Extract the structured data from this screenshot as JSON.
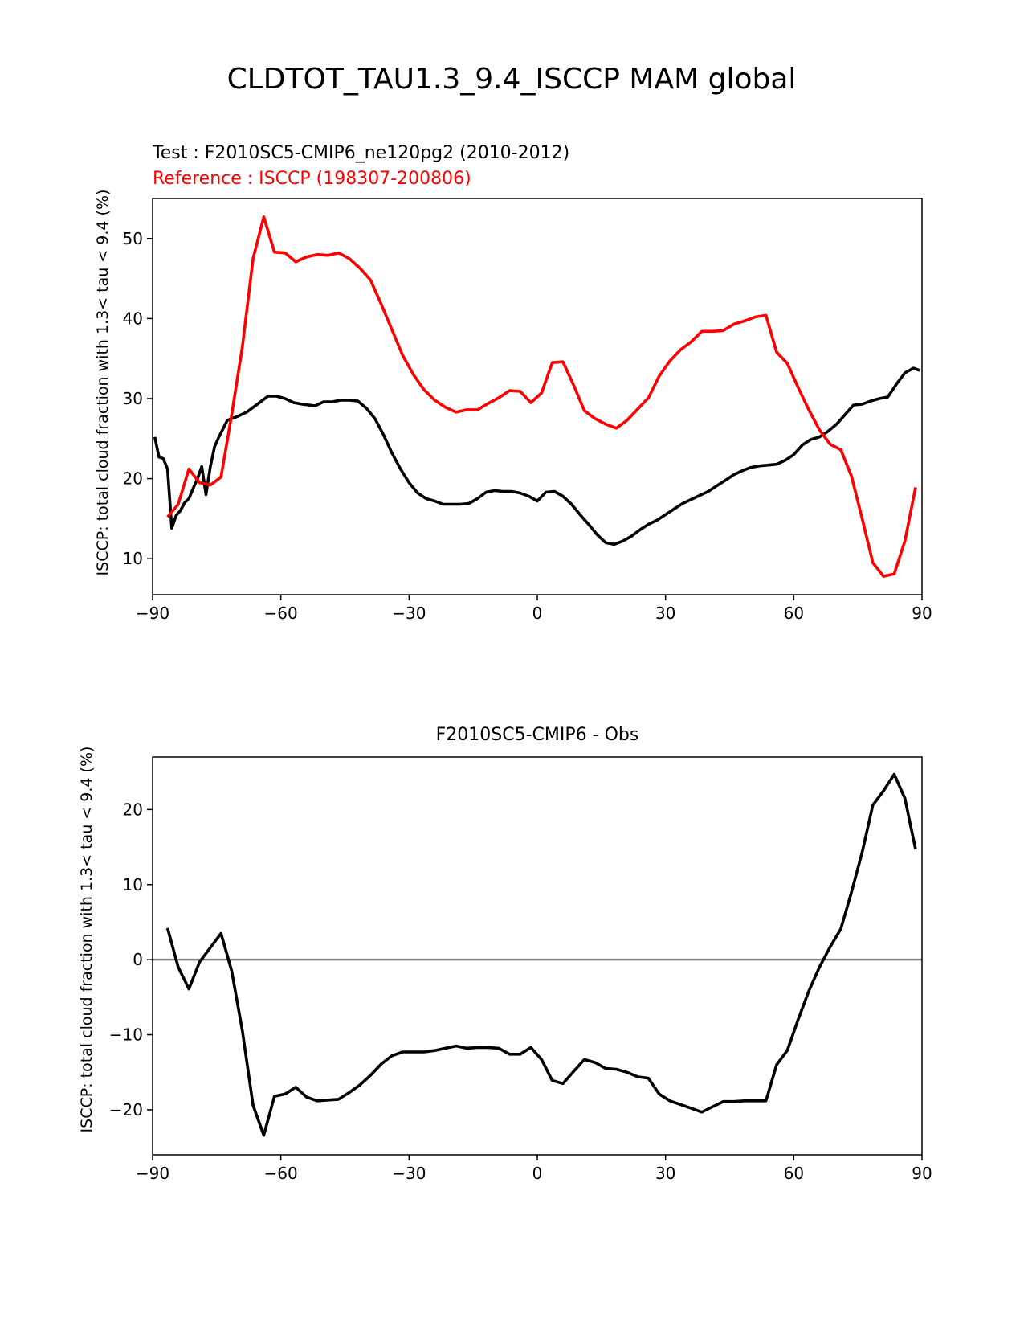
{
  "figure_title": "CLDTOT_TAU1.3_9.4_ISCCP MAM global",
  "colors": {
    "test": "#000000",
    "reference": "#ff0000",
    "zero_line": "#808080"
  },
  "chart_data": [
    {
      "type": "line",
      "test_label": "Test : F2010SC5-CMIP6_ne120pg2 (2010-2012)",
      "reference_label": "Reference : ISCCP (198307-200806)",
      "ylabel": "ISCCP: total cloud fraction with 1.3< tau < 9.4 (%)",
      "xlabel": "",
      "xlim": [
        -90,
        90
      ],
      "ylim": [
        5.5,
        55
      ],
      "xticks": [
        -90,
        -60,
        -30,
        0,
        30,
        60,
        90
      ],
      "xtick_labels": [
        "−90",
        "−60",
        "−30",
        "0",
        "30",
        "60",
        "90"
      ],
      "yticks": [
        10,
        20,
        30,
        40,
        50
      ],
      "ytick_labels": [
        "10",
        "20",
        "30",
        "40",
        "50"
      ],
      "series": [
        {
          "name": "Test",
          "color": "#000000",
          "x": [
            -89.5,
            -88.5,
            -87.5,
            -86.5,
            -85.5,
            -84.5,
            -83.5,
            -82.5,
            -81.5,
            -80.5,
            -79.5,
            -78.5,
            -77.5,
            -76.5,
            -75.5,
            -74.5,
            -72.5,
            -70,
            -68,
            -65,
            -63,
            -61,
            -59,
            -57,
            -55,
            -52,
            -50,
            -48,
            -46,
            -44,
            -42,
            -40,
            -38,
            -36,
            -34,
            -32,
            -30,
            -28,
            -26,
            -24,
            -22,
            -20,
            -18,
            -16,
            -14,
            -12,
            -10,
            -8,
            -6,
            -4,
            -2,
            0,
            2,
            4,
            6,
            8,
            10,
            12,
            14,
            16,
            18,
            20,
            22,
            24,
            26,
            28,
            30,
            32,
            34,
            36,
            38,
            40,
            42,
            44,
            46,
            48,
            50,
            52,
            54,
            56,
            58,
            60,
            62,
            64,
            66,
            68,
            70,
            72,
            74,
            76,
            78,
            80,
            82,
            84,
            86,
            88,
            89.5
          ],
          "values": [
            25.2,
            22.7,
            22.5,
            21.2,
            13.8,
            15.4,
            16.0,
            17.0,
            17.5,
            18.8,
            20.0,
            21.5,
            18.0,
            21.5,
            24.0,
            25.2,
            27.3,
            27.8,
            28.3,
            29.5,
            30.3,
            30.3,
            30.0,
            29.5,
            29.3,
            29.1,
            29.6,
            29.6,
            29.8,
            29.8,
            29.7,
            28.8,
            27.5,
            25.5,
            23.2,
            21.2,
            19.5,
            18.2,
            17.5,
            17.2,
            16.8,
            16.8,
            16.8,
            16.9,
            17.5,
            18.3,
            18.5,
            18.4,
            18.4,
            18.2,
            17.8,
            17.2,
            18.3,
            18.4,
            17.8,
            16.8,
            15.5,
            14.3,
            13.0,
            12.0,
            11.8,
            12.2,
            12.8,
            13.6,
            14.3,
            14.8,
            15.5,
            16.2,
            16.9,
            17.4,
            17.9,
            18.4,
            19.1,
            19.8,
            20.5,
            21.0,
            21.4,
            21.6,
            21.7,
            21.8,
            22.3,
            23.0,
            24.2,
            24.9,
            25.2,
            25.9,
            26.8,
            28.0,
            29.2,
            29.3,
            29.7,
            30.0,
            30.2,
            31.8,
            33.2,
            33.8,
            33.5
          ],
          "style": "solid"
        },
        {
          "name": "Reference",
          "color": "#ff0000",
          "x": [
            -86.5,
            -84,
            -81.5,
            -79,
            -76.5,
            -74,
            -71.5,
            -69,
            -66.5,
            -64,
            -61.5,
            -59,
            -56.5,
            -54,
            -51.5,
            -49,
            -46.5,
            -44,
            -41.5,
            -39,
            -36.5,
            -34,
            -31.5,
            -29,
            -26.5,
            -24,
            -21.5,
            -19,
            -16.5,
            -14,
            -11.5,
            -9,
            -6.5,
            -4,
            -1.5,
            1,
            3.5,
            6,
            8.5,
            11,
            13.5,
            16,
            18.5,
            21,
            23.5,
            26,
            28.5,
            31,
            33.5,
            36,
            38.5,
            41,
            43.5,
            46,
            48.5,
            51,
            53.5,
            56,
            58.5,
            61,
            63.5,
            66,
            68.5,
            71,
            73.5,
            76,
            78.5,
            81,
            83.5,
            86,
            88.5
          ],
          "values": [
            15.2,
            16.8,
            21.2,
            19.5,
            19.2,
            20.2,
            28.0,
            36.5,
            47.5,
            52.7,
            48.3,
            48.2,
            47.1,
            47.7,
            48.0,
            47.9,
            48.2,
            47.5,
            46.3,
            44.8,
            41.8,
            38.6,
            35.4,
            33.0,
            31.1,
            29.8,
            28.9,
            28.3,
            28.6,
            28.6,
            29.4,
            30.1,
            31.0,
            30.9,
            29.5,
            30.7,
            34.5,
            34.6,
            31.7,
            28.5,
            27.5,
            26.8,
            26.3,
            27.3,
            28.7,
            30.1,
            32.8,
            34.7,
            36.1,
            37.1,
            38.4,
            38.4,
            38.5,
            39.3,
            39.7,
            40.2,
            40.4,
            35.8,
            34.4,
            31.4,
            28.6,
            26.1,
            24.3,
            23.6,
            20.3,
            15.0,
            9.5,
            7.8,
            8.1,
            12.2,
            18.9
          ],
          "style": "solid"
        }
      ]
    },
    {
      "type": "line",
      "title": "F2010SC5-CMIP6 - Obs",
      "ylabel": "ISCCP: total cloud fraction with 1.3< tau < 9.4 (%)",
      "xlabel": "",
      "xlim": [
        -90,
        90
      ],
      "ylim": [
        -26,
        27
      ],
      "xticks": [
        -90,
        -60,
        -30,
        0,
        30,
        60,
        90
      ],
      "xtick_labels": [
        "−90",
        "−60",
        "−30",
        "0",
        "30",
        "60",
        "90"
      ],
      "yticks": [
        -20,
        -10,
        0,
        10,
        20
      ],
      "ytick_labels": [
        "−20",
        "−10",
        "0",
        "10",
        "20"
      ],
      "hline": 0,
      "series": [
        {
          "name": "Test - Obs",
          "color": "#000000",
          "x": [
            -86.5,
            -84,
            -81.5,
            -79,
            -76.5,
            -74,
            -71.5,
            -69,
            -66.5,
            -64,
            -61.5,
            -59,
            -56.5,
            -54,
            -51.5,
            -49,
            -46.5,
            -44,
            -41.5,
            -39,
            -36.5,
            -34,
            -31.5,
            -29,
            -26.5,
            -24,
            -21.5,
            -19,
            -16.5,
            -14,
            -11.5,
            -9,
            -6.5,
            -4,
            -1.5,
            1,
            3.5,
            6,
            8.5,
            11,
            13.5,
            16,
            18.5,
            21,
            23.5,
            26,
            28.5,
            31,
            33.5,
            36,
            38.5,
            41,
            43.5,
            46,
            48.5,
            51,
            53.5,
            56,
            58.5,
            61,
            63.5,
            66,
            68.5,
            71,
            73.5,
            76,
            78.5,
            81,
            83.5,
            86,
            88.5
          ],
          "values": [
            4.2,
            -1.0,
            -3.9,
            -0.3,
            1.6,
            3.5,
            -1.5,
            -9.5,
            -19.4,
            -23.4,
            -18.2,
            -17.9,
            -17.0,
            -18.3,
            -18.8,
            -18.7,
            -18.6,
            -17.7,
            -16.7,
            -15.4,
            -13.9,
            -12.8,
            -12.3,
            -12.3,
            -12.3,
            -12.1,
            -11.8,
            -11.5,
            -11.8,
            -11.7,
            -11.7,
            -11.8,
            -12.6,
            -12.6,
            -11.7,
            -13.3,
            -16.1,
            -16.5,
            -14.9,
            -13.3,
            -13.7,
            -14.5,
            -14.6,
            -15.0,
            -15.6,
            -15.8,
            -17.9,
            -18.8,
            -19.3,
            -19.8,
            -20.3,
            -19.6,
            -18.9,
            -18.9,
            -18.8,
            -18.8,
            -18.8,
            -14.0,
            -12.1,
            -8.0,
            -4.2,
            -1.0,
            1.7,
            4.1,
            9.0,
            14.3,
            20.6,
            22.5,
            24.7,
            21.5,
            14.7
          ],
          "style": "solid"
        }
      ]
    }
  ]
}
